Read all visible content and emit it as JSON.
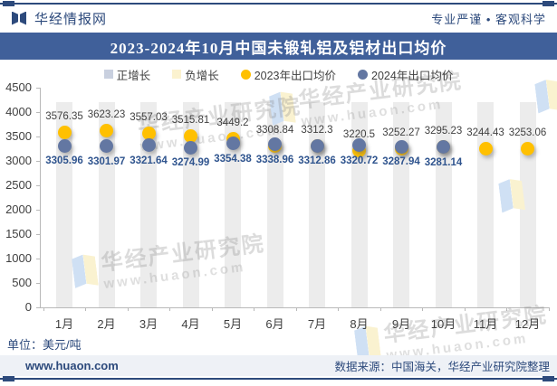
{
  "header": {
    "brand": "华经情报网",
    "slogan": "专业严谨 • 客观科学"
  },
  "title": "2023-2024年10月中国未锻轧铝及铝材出口均价",
  "legend": [
    {
      "label": "正增长",
      "type": "square",
      "color": "#c9d0df"
    },
    {
      "label": "负增长",
      "type": "square",
      "color": "#fbf2cf"
    },
    {
      "label": "2023年出口均价",
      "type": "circle",
      "color": "#FFC000"
    },
    {
      "label": "2024年出口均价",
      "type": "circle",
      "color": "#6377a2"
    }
  ],
  "unit_note": "单位：美元/吨",
  "footer": {
    "site": "www.huaon.com",
    "source": "数据来源：中国海关，华经产业研究院整理"
  },
  "watermark": {
    "brand": "华经产业研究院",
    "site": "www.huaon.com"
  },
  "colors": {
    "navy": "#2d4a7c",
    "title_bar_bg": "#40609a",
    "stripe": "#ececec",
    "footer_bg": "#eef1f6",
    "axis": "#b9b9b9",
    "watermark_blue": "#cfe0f4",
    "watermark_yellow": "#faf2d0"
  },
  "chart_data": {
    "type": "scatter",
    "title": "2023-2024年10月中国未锻轧铝及铝材出口均价",
    "unit": "美元/吨",
    "categories": [
      "1月",
      "2月",
      "3月",
      "4月",
      "5月",
      "6月",
      "7月",
      "8月",
      "9月",
      "10月",
      "11月",
      "12月"
    ],
    "series": [
      {
        "name": "2023年出口均价",
        "color": "#FFC000",
        "label_color": "#404040",
        "values": [
          3576.35,
          3623.23,
          3557.03,
          3515.81,
          3449.2,
          3308.84,
          3312.3,
          3220.5,
          3252.27,
          3295.23,
          3244.43,
          3253.06
        ]
      },
      {
        "name": "2024年出口均价",
        "color": "#6377a2",
        "label_color": "#2f548e",
        "values": [
          3305.96,
          3301.97,
          3321.64,
          3274.99,
          3354.38,
          3338.96,
          3312.86,
          3320.72,
          3287.94,
          3281.14,
          null,
          null
        ]
      }
    ],
    "ylim": [
      0,
      4500
    ],
    "yticks": [
      0,
      500,
      1000,
      1500,
      2000,
      2500,
      3000,
      3500,
      4000,
      4500
    ],
    "grid": false,
    "legend_position": "top",
    "background_stripes": true
  }
}
